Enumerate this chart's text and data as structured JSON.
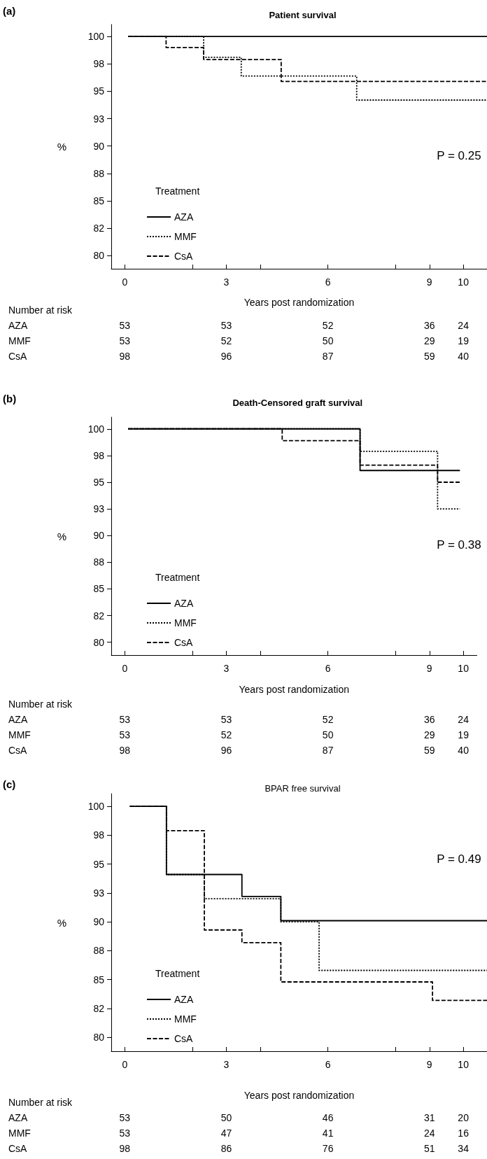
{
  "chart_data": [
    {
      "type": "step",
      "title": "Patient survival",
      "xlabel": "Years post randomization",
      "ylabel": "%",
      "legend_title": "Treatment",
      "legend": "bottom left",
      "grid": false,
      "marker": "none",
      "annotations": [
        "(a)",
        "P = 0.25",
        "Number at risk",
        "AZA",
        "53",
        "53",
        "52",
        "36",
        "24",
        "MMF",
        "53",
        "52",
        "50",
        "29",
        "19",
        "CsA",
        "98",
        "96",
        "87",
        "59",
        "40"
      ],
      "xlim": [
        -0.4,
        10.7
      ],
      "xticks": [
        0,
        {
          "value": 2,
          "label": null
        },
        3,
        {
          "value": 4,
          "label": null
        },
        6,
        {
          "value": 8,
          "label": null
        },
        9,
        10
      ],
      "ylim": [
        78.8,
        101.1
      ],
      "yticks": [
        80,
        {
          "value": 82.5,
          "label": "82"
        },
        85,
        {
          "value": 87.5,
          "label": "88"
        },
        90,
        {
          "value": 92.5,
          "label": "93"
        },
        95,
        {
          "value": 97.5,
          "label": "98"
        },
        100
      ],
      "series": [
        {
          "name": "AZA",
          "color": "#000000",
          "line_style": "solid",
          "x": [
            0.1,
            10.7
          ],
          "values": [
            100,
            100
          ]
        },
        {
          "name": "MMF",
          "color": "#000000",
          "line_style": "dotted",
          "x": [
            0.1,
            2.33,
            3.44,
            6.85,
            10.7
          ],
          "values": [
            100,
            98.1,
            96.4,
            94.2,
            94.2
          ]
        },
        {
          "name": "CsA",
          "color": "#000000",
          "line_style": "dashed",
          "x": [
            0.1,
            1.22,
            2.33,
            4.62,
            10.7
          ],
          "values": [
            100,
            99,
            97.9,
            95.9,
            95.9
          ]
        }
      ]
    },
    {
      "type": "step",
      "title": "Death-Censored graft survival",
      "xlabel": "Years post randomization",
      "ylabel": "%",
      "legend_title": "Treatment",
      "legend": "bottom left",
      "grid": false,
      "marker": "none",
      "annotations": [
        "(b)",
        "P = 0.38",
        "Number at risk",
        "AZA",
        "53",
        "53",
        "52",
        "36",
        "24",
        "MMF",
        "53",
        "52",
        "50",
        "29",
        "19",
        "CsA",
        "98",
        "96",
        "87",
        "59",
        "40"
      ],
      "xlim": [
        -0.4,
        10.4
      ],
      "xticks": [
        0,
        {
          "value": 2,
          "label": null
        },
        3,
        {
          "value": 4,
          "label": null
        },
        6,
        {
          "value": 8,
          "label": null
        },
        9,
        10
      ],
      "ylim": [
        78.8,
        101.1
      ],
      "yticks": [
        80,
        {
          "value": 82.5,
          "label": "82"
        },
        85,
        {
          "value": 87.5,
          "label": "88"
        },
        90,
        {
          "value": 92.5,
          "label": "93"
        },
        95,
        {
          "value": 97.5,
          "label": "98"
        },
        100
      ],
      "series": [
        {
          "name": "AZA",
          "color": "#000000",
          "line_style": "solid",
          "x": [
            0.1,
            6.95,
            9.9
          ],
          "values": [
            100,
            96.1,
            96.1
          ]
        },
        {
          "name": "MMF",
          "color": "#000000",
          "line_style": "dotted",
          "x": [
            0.1,
            6.95,
            9.24,
            9.9
          ],
          "values": [
            100,
            97.9,
            92.5,
            92.5
          ]
        },
        {
          "name": "CsA",
          "color": "#000000",
          "line_style": "dashed",
          "x": [
            0.1,
            4.65,
            6.95,
            9.24,
            9.9
          ],
          "values": [
            100,
            98.9,
            96.6,
            95,
            95
          ]
        }
      ]
    },
    {
      "type": "step",
      "title": "BPAR free survival",
      "xlabel": "Years post randomization",
      "ylabel": "%",
      "legend_title": "Treatment",
      "legend": "bottom left",
      "grid": false,
      "marker": "none",
      "annotations": [
        "(c)",
        "P = 0.49",
        "Number at risk",
        "AZA",
        "53",
        "50",
        "46",
        "31",
        "20",
        "MMF",
        "53",
        "47",
        "41",
        "24",
        "16",
        "CsA",
        "98",
        "86",
        "76",
        "51",
        "34"
      ],
      "xlim": [
        -0.4,
        10.7
      ],
      "xticks": [
        0,
        {
          "value": 2,
          "label": null
        },
        3,
        {
          "value": 4,
          "label": null
        },
        6,
        {
          "value": 8,
          "label": null
        },
        9,
        10
      ],
      "ylim": [
        78.8,
        101.1
      ],
      "yticks": [
        80,
        {
          "value": 82.5,
          "label": "82"
        },
        85,
        {
          "value": 87.5,
          "label": "88"
        },
        90,
        {
          "value": 92.5,
          "label": "93"
        },
        95,
        {
          "value": 97.5,
          "label": "98"
        },
        100
      ],
      "series": [
        {
          "name": "AZA",
          "color": "#000000",
          "line_style": "solid",
          "x": [
            0.15,
            1.23,
            3.46,
            4.61,
            10.7
          ],
          "values": [
            100,
            94.1,
            92.2,
            90.1,
            90.1
          ]
        },
        {
          "name": "MMF",
          "color": "#000000",
          "line_style": "dotted",
          "x": [
            0.15,
            1.23,
            2.35,
            4.61,
            5.74,
            10.7
          ],
          "values": [
            100,
            94.1,
            92,
            90,
            85.8,
            85.8
          ]
        },
        {
          "name": "CsA",
          "color": "#000000",
          "line_style": "dashed",
          "x": [
            0.15,
            1.23,
            2.35,
            3.46,
            4.61,
            9.09,
            10.7
          ],
          "values": [
            100,
            97.9,
            89.3,
            88.2,
            84.8,
            83.2,
            83.2
          ]
        }
      ]
    }
  ]
}
